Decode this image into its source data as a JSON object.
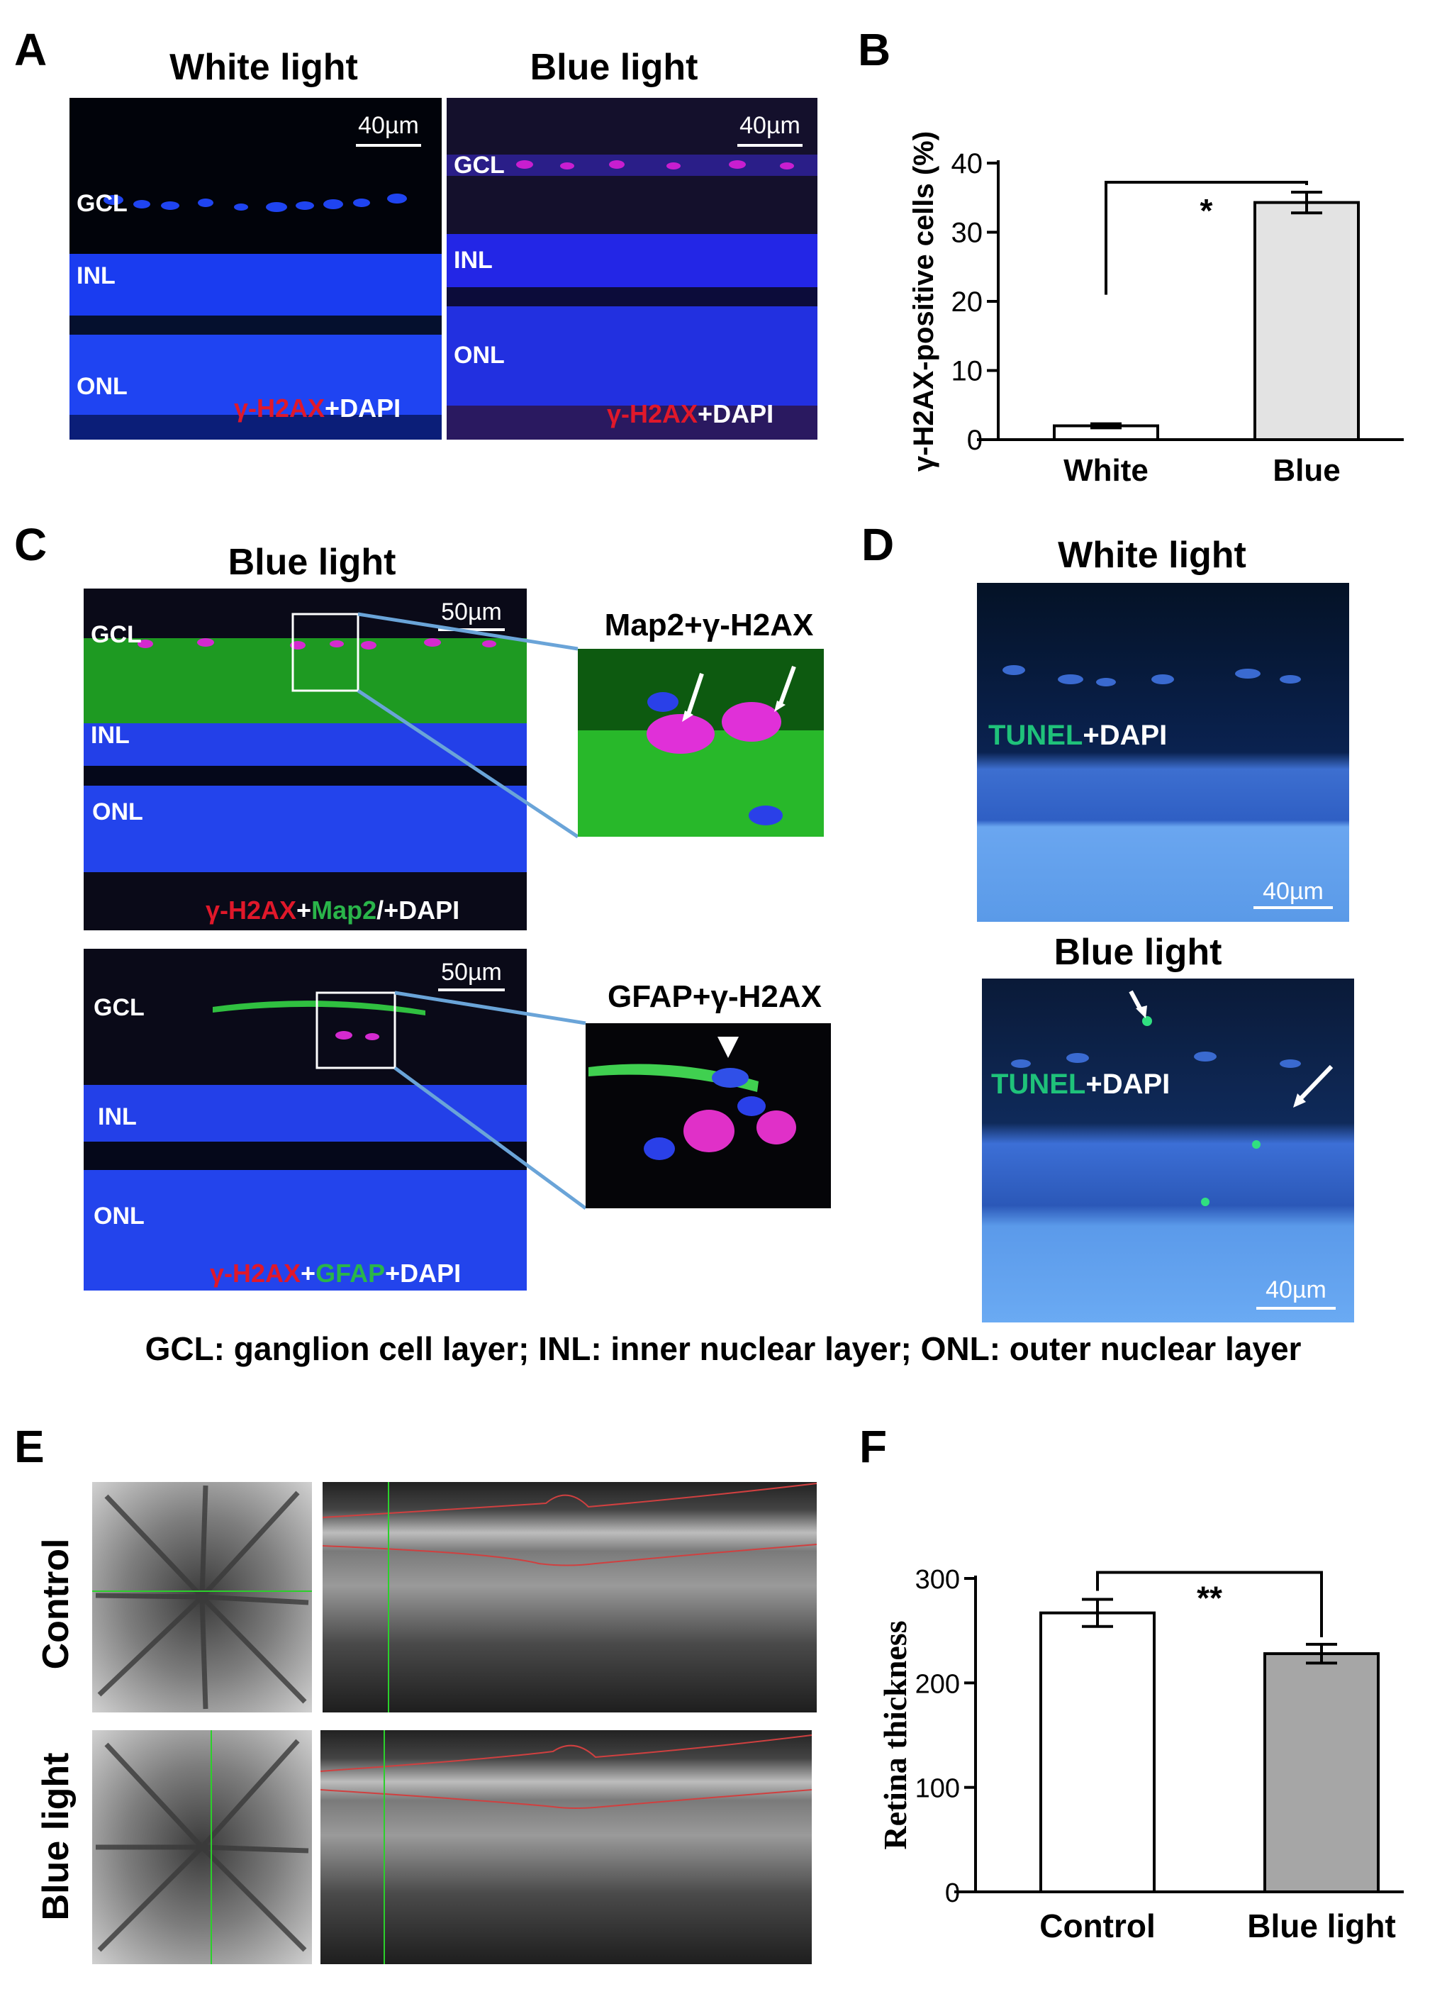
{
  "panels": {
    "A": {
      "letter": "A",
      "titles": [
        "White light",
        "Blue light"
      ],
      "scale": "40µm",
      "layers": [
        "GCL",
        "INL",
        "ONL"
      ],
      "stain": {
        "red": "γ-H2AX",
        "rest": "+DAPI"
      }
    },
    "B": {
      "letter": "B"
    },
    "C": {
      "letter": "C",
      "title": "Blue light",
      "scale": "50µm",
      "layers": [
        "GCL",
        "INL",
        "ONL"
      ],
      "top_caption": {
        "a": "γ-H2AX",
        "b": "+",
        "c": "Map2",
        "d": "/+DAPI"
      },
      "bottom_caption": {
        "a": "γ-H2AX",
        "b": "+",
        "c": "GFAP",
        "d": "+DAPI"
      },
      "inset_top": "Map2+γ-H2AX",
      "inset_bottom": "GFAP+γ-H2AX"
    },
    "D": {
      "letter": "D",
      "titles": [
        "White light",
        "Blue light"
      ],
      "scale": "40µm",
      "stain": {
        "green": "TUNEL",
        "rest": "+DAPI"
      }
    },
    "E": {
      "letter": "E",
      "rows": [
        "Control",
        "Blue light"
      ]
    },
    "F": {
      "letter": "F"
    }
  },
  "legend": "GCL: ganglion cell layer; INL: inner nuclear layer; ONL: outer nuclear layer",
  "chart_data": [
    {
      "panel": "B",
      "type": "bar",
      "categories": [
        "White",
        "Blue"
      ],
      "values": [
        2,
        34.3
      ],
      "errors": [
        0.3,
        1.5
      ],
      "ylabel": "γ-H2AX-positive cells (%)",
      "ylim": [
        0,
        40
      ],
      "yticks": [
        0,
        10,
        20,
        30,
        40
      ],
      "bar_colors": [
        "#ffffff",
        "#e3e3e3"
      ],
      "significance": "*"
    },
    {
      "panel": "F",
      "type": "bar",
      "categories": [
        "Control",
        "Blue light"
      ],
      "values": [
        267,
        228
      ],
      "errors": [
        13,
        9
      ],
      "ylabel": "Retina thickness",
      "ylim": [
        0,
        300
      ],
      "yticks": [
        0,
        100,
        200,
        300
      ],
      "bar_colors": [
        "#ffffff",
        "#a6a6a6"
      ],
      "significance": "**"
    }
  ]
}
